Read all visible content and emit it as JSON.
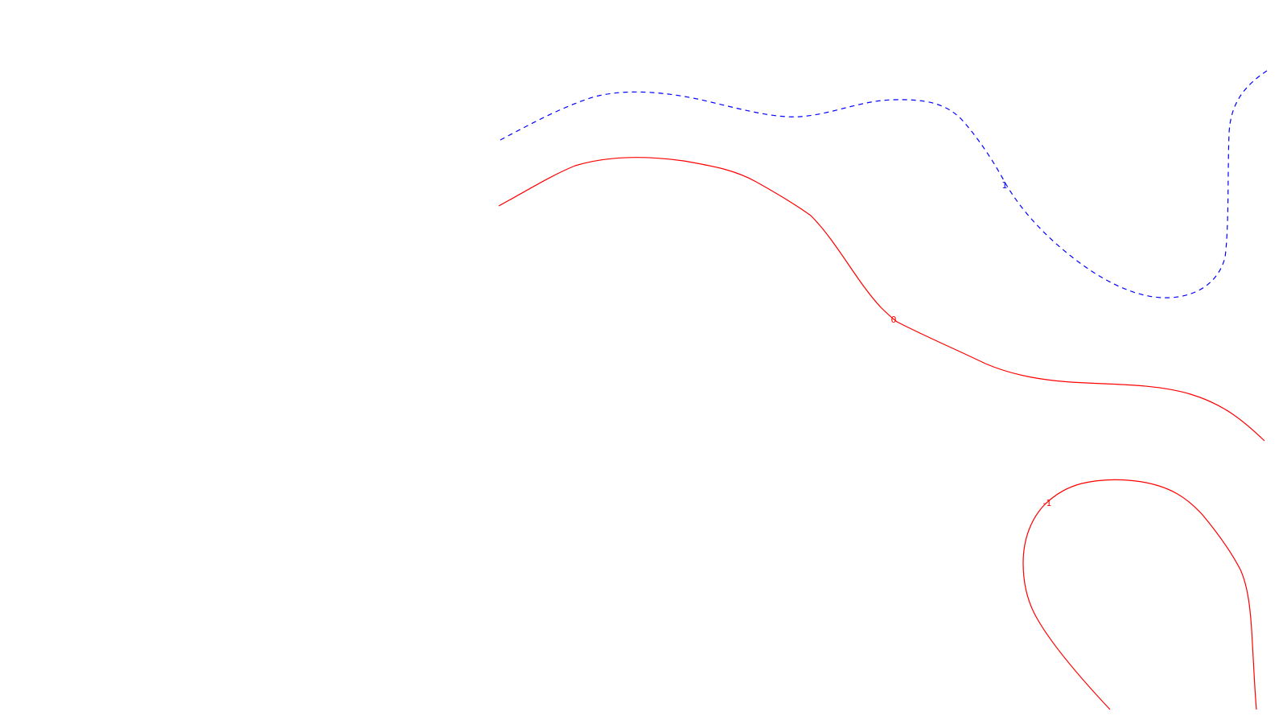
{
  "contours": [
    {
      "level_label": "1",
      "color": "#0000ff",
      "style": "dashed"
    },
    {
      "level_label": "0",
      "color": "#ff0000",
      "style": "solid"
    },
    {
      "level_label": "-1",
      "color": "#ff0000",
      "style": "solid"
    }
  ]
}
